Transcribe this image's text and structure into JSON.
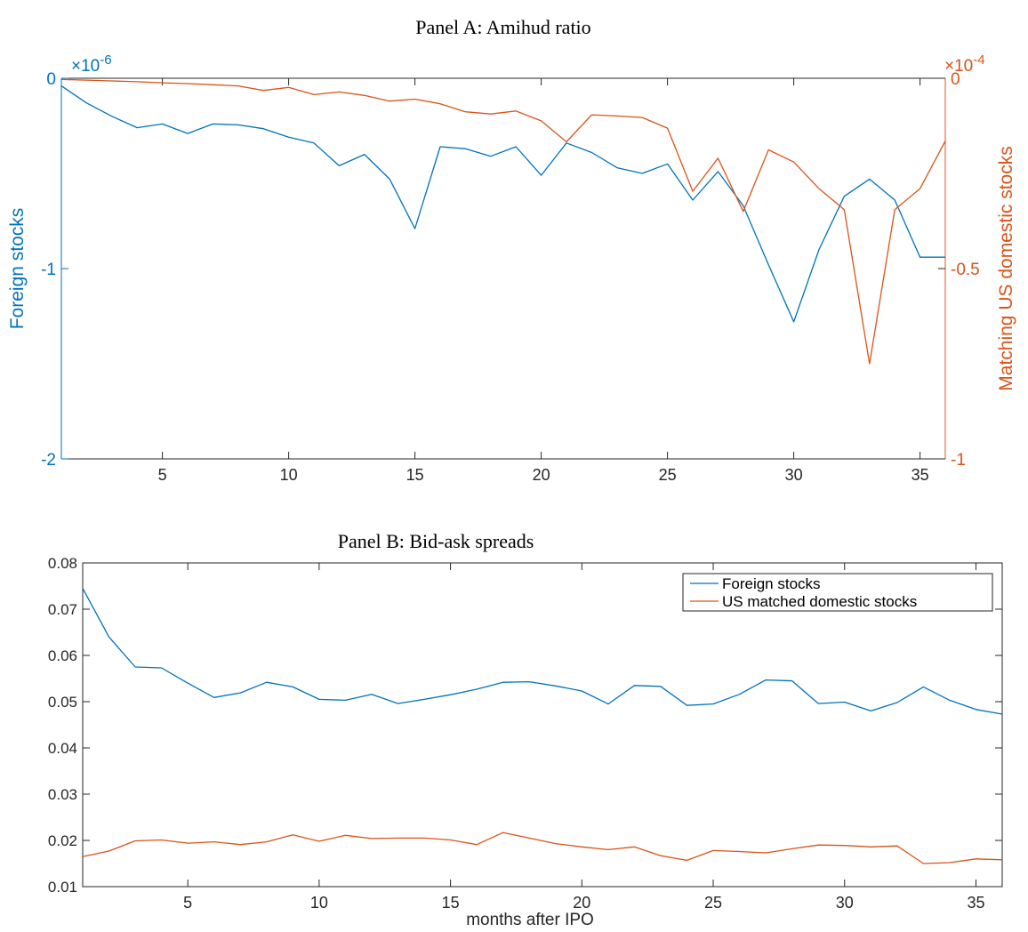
{
  "chart_data": [
    {
      "type": "line",
      "title": "Panel A: Amihud ratio",
      "xlabel": "",
      "xlim": [
        1,
        36
      ],
      "xticks": [
        5,
        10,
        15,
        20,
        25,
        30,
        35
      ],
      "y_left": {
        "label": "Foreign stocks",
        "ylim": [
          -2,
          0
        ],
        "ticks": [
          0,
          -1,
          -2
        ],
        "tick_labels": [
          "0",
          "-1",
          "-2"
        ],
        "exponent_prefix": "×10",
        "exponent_power": "-6",
        "color": "#0072BD"
      },
      "y_right": {
        "label": "Matching US domestic stocks",
        "ylim": [
          -1,
          0
        ],
        "ticks": [
          0,
          -0.5,
          -1
        ],
        "tick_labels": [
          "0",
          "-0.5",
          "-1"
        ],
        "exponent_prefix": "×10",
        "exponent_power": "-4",
        "color": "#D95319"
      },
      "x": [
        1,
        2,
        3,
        4,
        5,
        6,
        7,
        8,
        9,
        10,
        11,
        12,
        13,
        14,
        15,
        16,
        17,
        18,
        19,
        20,
        21,
        22,
        23,
        24,
        25,
        26,
        27,
        28,
        29,
        30,
        31,
        32,
        33,
        34,
        35,
        36
      ],
      "series": [
        {
          "axis": "left",
          "color": "#0072BD",
          "values": [
            -0.04,
            -0.13,
            -0.2,
            -0.26,
            -0.24,
            -0.29,
            -0.24,
            -0.245,
            -0.265,
            -0.31,
            -0.34,
            -0.46,
            -0.4,
            -0.53,
            -0.79,
            -0.36,
            -0.37,
            -0.41,
            -0.36,
            -0.51,
            -0.34,
            -0.39,
            -0.47,
            -0.5,
            -0.45,
            -0.64,
            -0.49,
            -0.67,
            -0.98,
            -1.28,
            -0.9,
            -0.62,
            -0.53,
            -0.64,
            -0.94,
            -0.94
          ]
        },
        {
          "axis": "right",
          "color": "#D95319",
          "values": [
            -0.003,
            -0.005,
            -0.007,
            -0.009,
            -0.012,
            -0.014,
            -0.017,
            -0.02,
            -0.032,
            -0.024,
            -0.043,
            -0.036,
            -0.045,
            -0.06,
            -0.055,
            -0.067,
            -0.088,
            -0.094,
            -0.086,
            -0.112,
            -0.167,
            -0.096,
            -0.099,
            -0.103,
            -0.131,
            -0.297,
            -0.21,
            -0.35,
            -0.188,
            -0.22,
            -0.29,
            -0.345,
            -0.75,
            -0.345,
            -0.29,
            -0.165
          ]
        }
      ]
    },
    {
      "type": "line",
      "title": "Panel B: Bid-ask spreads",
      "xlabel": "months after IPO",
      "ylabel": "",
      "xlim": [
        1,
        36
      ],
      "xticks": [
        5,
        10,
        15,
        20,
        25,
        30,
        35
      ],
      "ylim": [
        0.01,
        0.08
      ],
      "yticks": [
        0.01,
        0.02,
        0.03,
        0.04,
        0.05,
        0.06,
        0.07,
        0.08
      ],
      "ytick_labels": [
        "0.01",
        "0.02",
        "0.03",
        "0.04",
        "0.05",
        "0.06",
        "0.07",
        "0.08"
      ],
      "legend_position": "top-right",
      "x": [
        1,
        2,
        3,
        4,
        5,
        6,
        7,
        8,
        9,
        10,
        11,
        12,
        13,
        14,
        15,
        16,
        17,
        18,
        19,
        20,
        21,
        22,
        23,
        24,
        25,
        26,
        27,
        28,
        29,
        30,
        31,
        32,
        33,
        34,
        35,
        36
      ],
      "series": [
        {
          "name": "Foreign stocks",
          "color": "#0072BD",
          "values": [
            0.0745,
            0.064,
            0.0575,
            0.0573,
            0.054,
            0.0509,
            0.0519,
            0.0542,
            0.0532,
            0.0505,
            0.0503,
            0.0516,
            0.0496,
            0.0505,
            0.0515,
            0.0527,
            0.0542,
            0.0543,
            0.0534,
            0.0523,
            0.0495,
            0.0535,
            0.0533,
            0.0492,
            0.0495,
            0.0516,
            0.0547,
            0.0545,
            0.0496,
            0.0499,
            0.048,
            0.0498,
            0.0532,
            0.0503,
            0.0483,
            0.0473
          ]
        },
        {
          "name": "US matched domestic stocks",
          "color": "#D95319",
          "values": [
            0.0165,
            0.0177,
            0.0199,
            0.0201,
            0.0194,
            0.0197,
            0.0191,
            0.0197,
            0.0212,
            0.0198,
            0.0211,
            0.0204,
            0.0205,
            0.0205,
            0.0201,
            0.0191,
            0.0217,
            0.0205,
            0.0193,
            0.0186,
            0.018,
            0.0186,
            0.0167,
            0.0157,
            0.0178,
            0.0176,
            0.0173,
            0.0182,
            0.019,
            0.0189,
            0.0186,
            0.0188,
            0.015,
            0.0152,
            0.016,
            0.0158
          ]
        }
      ]
    }
  ]
}
